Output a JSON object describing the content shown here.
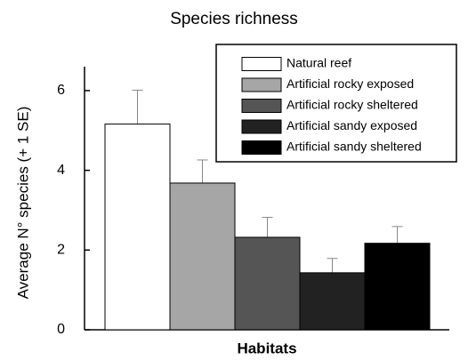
{
  "chart_data": {
    "type": "bar",
    "title": "Species richness",
    "xlabel": "Habitats",
    "ylabel": "Average N° species (+ 1 SE)",
    "categories": [
      null
    ],
    "series": [
      {
        "name": "Natural reef",
        "color": "#ffffff",
        "values": [
          5.16
        ],
        "errors": [
          0.85
        ]
      },
      {
        "name": "Artificial rocky exposed",
        "color": "#a6a6a6",
        "values": [
          3.68
        ],
        "errors": [
          0.58
        ]
      },
      {
        "name": "Artificial rocky sheltered",
        "color": "#555555",
        "values": [
          2.32
        ],
        "errors": [
          0.5
        ]
      },
      {
        "name": "Artificial sandy exposed",
        "color": "#222222",
        "values": [
          1.43
        ],
        "errors": [
          0.36
        ]
      },
      {
        "name": "Artificial sandy sheltered",
        "color": "#000000",
        "values": [
          2.17
        ],
        "errors": [
          0.42
        ]
      }
    ],
    "ylim": [
      0,
      6.6
    ],
    "yticks": [
      0,
      2,
      4,
      6
    ],
    "legend": "upper right"
  }
}
